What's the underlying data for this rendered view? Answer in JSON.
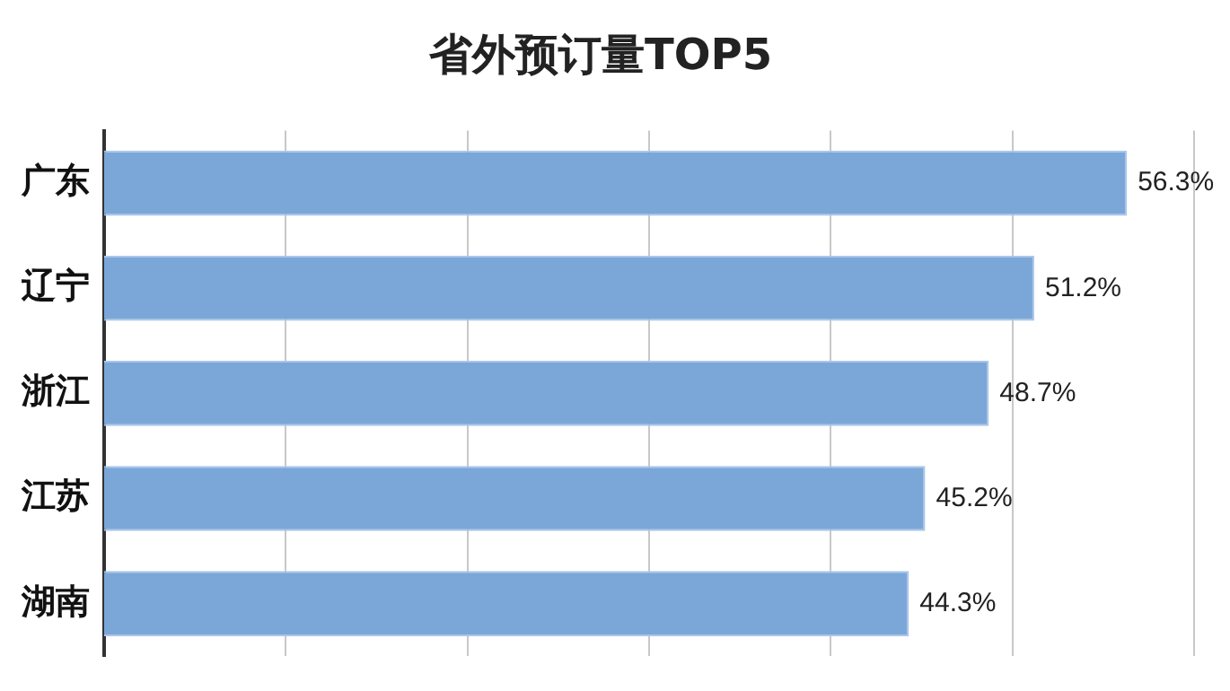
{
  "chart_data": {
    "type": "bar",
    "title": "省外预订量TOP5",
    "orientation": "horizontal",
    "categories": [
      "广东",
      "辽宁",
      "浙江",
      "江苏",
      "湖南"
    ],
    "values": [
      56.3,
      51.2,
      48.7,
      45.2,
      44.3
    ],
    "value_labels": [
      "56.3%",
      "51.2%",
      "48.7%",
      "45.2%",
      "44.3%"
    ],
    "color": "#7ba7d8",
    "xlim": [
      0,
      60
    ],
    "xticks": [
      {
        "value": 0,
        "label": null
      },
      {
        "value": 10,
        "label": null
      },
      {
        "value": 20,
        "label": null
      },
      {
        "value": 30,
        "label": null
      },
      {
        "value": 40,
        "label": null
      },
      {
        "value": 50,
        "label": null
      },
      {
        "value": 60,
        "label": null
      }
    ],
    "grid": "x",
    "tick_labels": "y",
    "legend": false
  }
}
